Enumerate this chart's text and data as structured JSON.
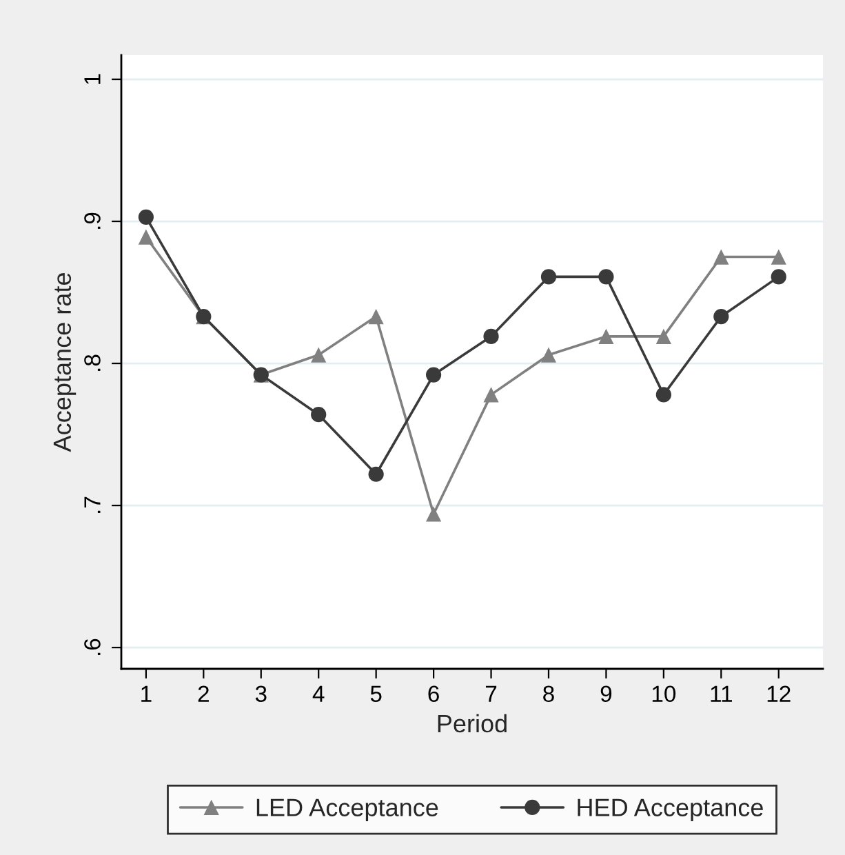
{
  "chart_data": {
    "type": "line",
    "xlabel": "Period",
    "ylabel": "Acceptance rate",
    "x": [
      1,
      2,
      3,
      4,
      5,
      6,
      7,
      8,
      9,
      10,
      11,
      12
    ],
    "series": [
      {
        "name": "LED Acceptance",
        "color": "#808080",
        "marker": "triangle",
        "values": [
          0.889,
          0.833,
          0.792,
          0.806,
          0.833,
          0.694,
          0.778,
          0.806,
          0.819,
          0.819,
          0.875,
          0.875
        ]
      },
      {
        "name": "HED Acceptance",
        "color": "#3a3a3a",
        "marker": "circle",
        "values": [
          0.903,
          0.833,
          0.792,
          0.764,
          0.722,
          0.792,
          0.819,
          0.861,
          0.861,
          0.778,
          0.833,
          0.861
        ]
      }
    ],
    "xlim": [
      0.57,
      12.77
    ],
    "xticks": [
      1,
      2,
      3,
      4,
      5,
      6,
      7,
      8,
      9,
      10,
      11,
      12
    ],
    "ylim": [
      0.585,
      1.017
    ],
    "yticks": [
      {
        "value": 0.6,
        "label": ".6"
      },
      {
        "value": 0.7,
        "label": ".7"
      },
      {
        "value": 0.8,
        "label": ".8"
      },
      {
        "value": 0.9,
        "label": ".9"
      },
      {
        "value": 1,
        "label": "1"
      }
    ],
    "grid": "y",
    "legend": "bottom",
    "line_style": "solid"
  }
}
